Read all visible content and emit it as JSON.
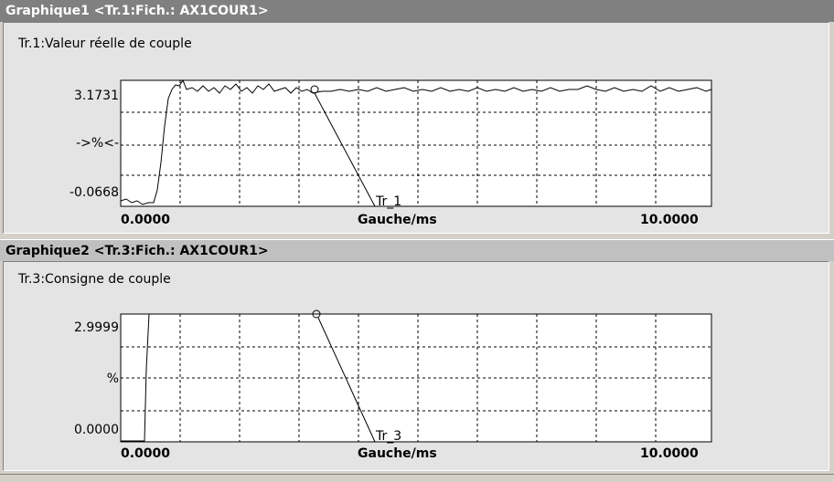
{
  "graph1": {
    "title": "Graphique1 <Tr.1:Fich.: AX1COUR1>",
    "subtitle": "Tr.1:Valeur réelle de couple",
    "y_top": "3.1731",
    "y_mid": "->%<-",
    "y_bottom": "-0.0668",
    "x_left": "0.0000",
    "x_mid": "Gauche/ms",
    "x_right": "10.0000",
    "trace_label": "Tr_1"
  },
  "graph2": {
    "title": "Graphique2 <Tr.3:Fich.: AX1COUR1>",
    "subtitle": "Tr.3:Consigne de couple",
    "y_top": "2.9999",
    "y_mid": "%",
    "y_bottom": "0.0000",
    "x_left": "0.0000",
    "x_mid": "Gauche/ms",
    "x_right": "10.0000",
    "trace_label": "Tr_3"
  },
  "colors": {
    "titlebar_active": "#808080",
    "titlebar_inactive": "#c0c0c0",
    "panel_bg": "#e4e4e4",
    "plot_bg": "#ffffff"
  }
}
